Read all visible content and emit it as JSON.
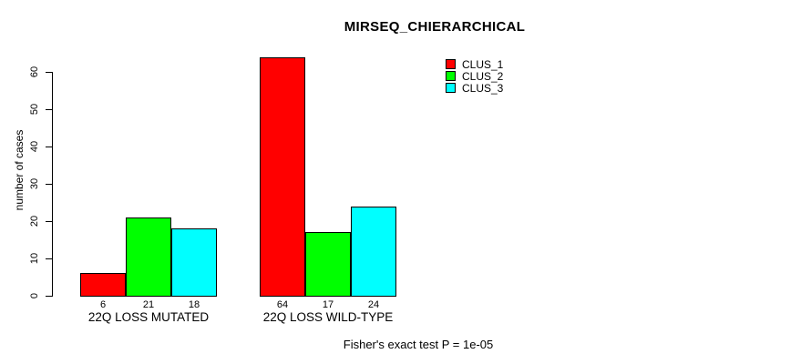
{
  "title": "MIRSEQ_CHIERARCHICAL",
  "footer": "Fisher's exact test P = 1e-05",
  "chart_data": {
    "type": "bar",
    "title": "MIRSEQ_CHIERARCHICAL",
    "xlabel": "",
    "ylabel": "number of cases",
    "categories": [
      "22Q LOSS MUTATED",
      "22Q LOSS WILD-TYPE"
    ],
    "series": [
      {
        "name": "CLUS_1",
        "color": "#ff0000",
        "values": [
          6,
          64
        ]
      },
      {
        "name": "CLUS_2",
        "color": "#00ff00",
        "values": [
          21,
          17
        ]
      },
      {
        "name": "CLUS_3",
        "color": "#00ffff",
        "values": [
          18,
          24
        ]
      }
    ],
    "bar_value_labels": [
      [
        6,
        21,
        18
      ],
      [
        64,
        17,
        24
      ]
    ],
    "ylim": [
      0,
      60
    ],
    "yticks": [
      0,
      10,
      20,
      30,
      40,
      50,
      60
    ],
    "grid": false,
    "legend_position": "top-right",
    "legend_entries": [
      "CLUS_1",
      "CLUS_2",
      "CLUS_3"
    ],
    "annotation": "Fisher's exact test P = 1e-05"
  }
}
